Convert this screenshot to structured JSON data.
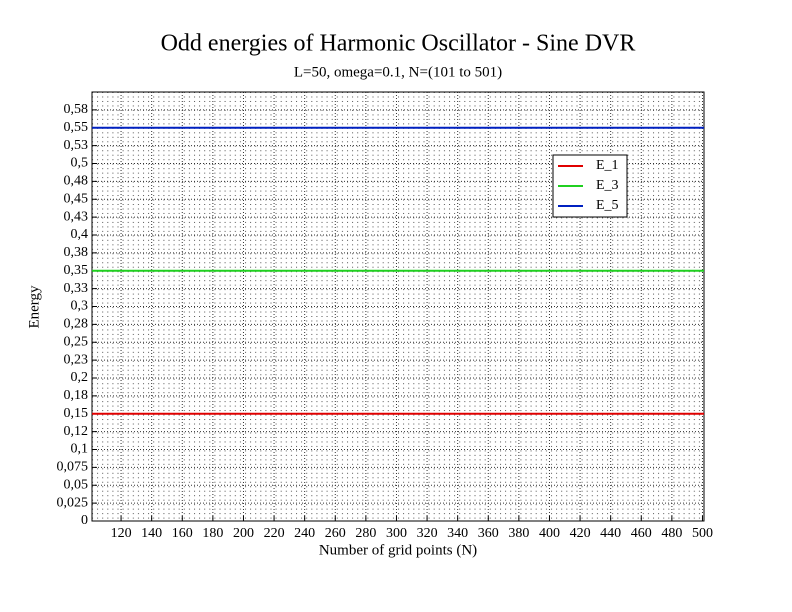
{
  "chart_data": {
    "type": "line",
    "title": "Odd energies of Harmonic Oscillator - Sine DVR",
    "subtitle": "L=50, omega=0.1, N=(101 to 501)",
    "xlabel": "Number of grid points (N)",
    "ylabel": "Energy",
    "x": [
      101,
      201,
      301,
      401,
      501
    ],
    "series": [
      {
        "name": "E_1",
        "color": "#e00000",
        "values": [
          0.15,
          0.15,
          0.15,
          0.15,
          0.15
        ]
      },
      {
        "name": "E_3",
        "color": "#20d020",
        "values": [
          0.35,
          0.35,
          0.35,
          0.35,
          0.35
        ]
      },
      {
        "name": "E_5",
        "color": "#0020c0",
        "values": [
          0.55,
          0.55,
          0.55,
          0.55,
          0.55
        ]
      }
    ],
    "xlim": [
      101,
      501
    ],
    "ylim": [
      0,
      0.6
    ],
    "xticks": [
      120,
      140,
      160,
      180,
      200,
      220,
      240,
      260,
      280,
      300,
      320,
      340,
      360,
      380,
      400,
      420,
      440,
      460,
      480,
      500
    ],
    "yticks": [
      0,
      {
        "value": 0.025,
        "label": "0,025"
      },
      {
        "value": 0.05,
        "label": "0,05"
      },
      {
        "value": 0.075,
        "label": "0,075"
      },
      {
        "value": 0.1,
        "label": "0,1"
      },
      {
        "value": 0.125,
        "label": "0,12"
      },
      {
        "value": 0.15,
        "label": "0,15"
      },
      {
        "value": 0.175,
        "label": "0,18"
      },
      {
        "value": 0.2,
        "label": "0,2"
      },
      {
        "value": 0.225,
        "label": "0,23"
      },
      {
        "value": 0.25,
        "label": "0,25"
      },
      {
        "value": 0.275,
        "label": "0,28"
      },
      {
        "value": 0.3,
        "label": "0,3"
      },
      {
        "value": 0.325,
        "label": "0,33"
      },
      {
        "value": 0.35,
        "label": "0,35"
      },
      {
        "value": 0.375,
        "label": "0,38"
      },
      {
        "value": 0.4,
        "label": "0,4"
      },
      {
        "value": 0.425,
        "label": "0,43"
      },
      {
        "value": 0.45,
        "label": "0,45"
      },
      {
        "value": 0.475,
        "label": "0,48"
      },
      {
        "value": 0.5,
        "label": "0,5"
      },
      {
        "value": 0.525,
        "label": "0,53"
      },
      {
        "value": 0.55,
        "label": "0,55"
      },
      {
        "value": 0.575,
        "label": "0,58"
      }
    ],
    "grid": true,
    "legend": "upper right"
  }
}
